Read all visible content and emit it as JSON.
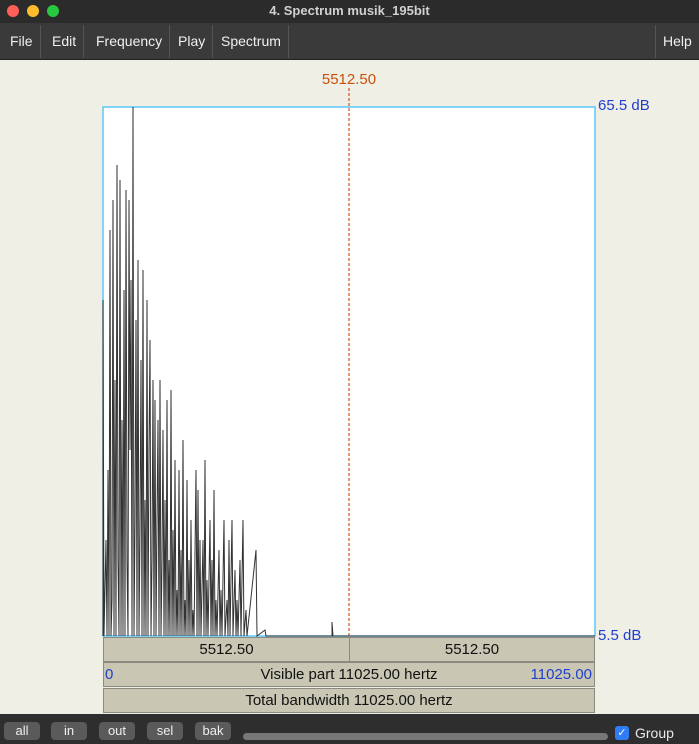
{
  "window": {
    "title": "4. Spectrum musik_195bit"
  },
  "menu": [
    "File",
    "Edit",
    "Frequency",
    "Play",
    "Spectrum",
    "Help"
  ],
  "cursor": {
    "label": "5512.50"
  },
  "axis": {
    "top": "65.5 dB",
    "bottom": "5.5 dB"
  },
  "info": {
    "left_cell": "5512.50",
    "right_cell": "5512.50",
    "visible_start": "0",
    "visible_text": "Visible part 11025.00 hertz",
    "visible_end": "11025.00",
    "total_text": "Total bandwidth 11025.00 hertz"
  },
  "buttons": [
    "all",
    "in",
    "out",
    "sel",
    "bak"
  ],
  "group": "Group"
}
